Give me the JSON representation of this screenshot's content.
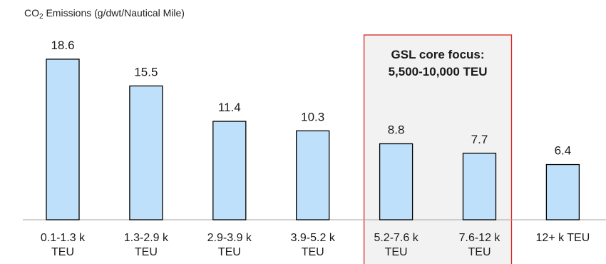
{
  "chart_data": {
    "type": "bar",
    "ylabel": {
      "prefix": "CO",
      "subscript": "2",
      "suffix": " Emissions (g/dwt/Nautical Mile)"
    },
    "categories": [
      [
        "0.1-1.3 k",
        "TEU"
      ],
      [
        "1.3-2.9 k",
        "TEU"
      ],
      [
        "2.9-3.9 k",
        "TEU"
      ],
      [
        "3.9-5.2 k",
        "TEU"
      ],
      [
        "5.2-7.6 k",
        "TEU"
      ],
      [
        "7.6-12 k",
        "TEU"
      ],
      [
        "12+ k TEU"
      ]
    ],
    "values": [
      18.6,
      15.5,
      11.4,
      10.3,
      8.8,
      7.7,
      6.4
    ],
    "value_labels": [
      "18.6",
      "15.5",
      "11.4",
      "10.3",
      "8.8",
      "7.7",
      "6.4"
    ],
    "ylim": [
      0,
      20
    ],
    "grid": false,
    "highlight": {
      "category_indices": [
        4,
        5
      ],
      "text": [
        "GSL core focus:",
        "5,500-10,000 TEU"
      ]
    }
  },
  "colors": {
    "bar_fill": "#bfe0fa",
    "bar_stroke": "#000000",
    "axis": "#a6a6a6",
    "highlight_fill": "#f2f2f2",
    "highlight_stroke": "#d9231f"
  }
}
